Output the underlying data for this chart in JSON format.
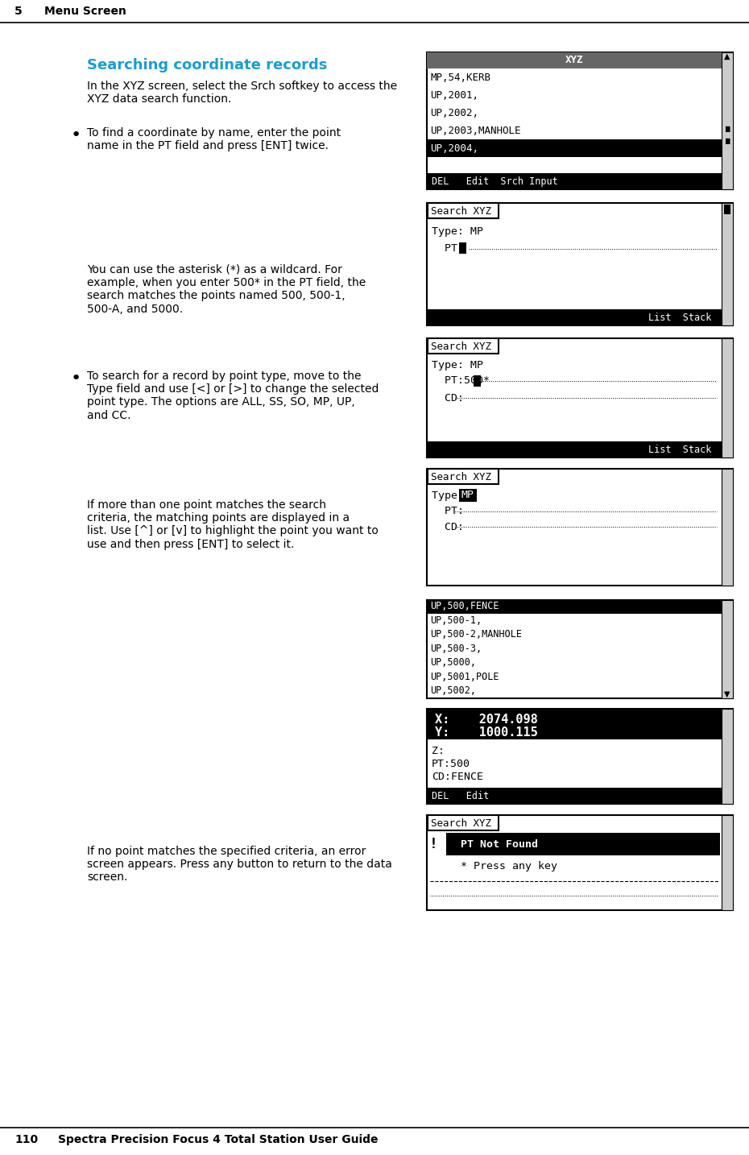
{
  "page_header_number": "5",
  "page_header_text": "Menu Screen",
  "page_footer_number": "110",
  "page_footer_text": "Spectra Precision Focus 4 Total Station User Guide",
  "section_title": "Searching coordinate records",
  "body_text_1": "In the XYZ screen, select the Sr ch softkey to access the\nXYZ data search function.",
  "bullet1_text": "To find a coordinate by name, enter the point\nname in the PT field and press [ENT] twice.",
  "wildcard_text": "You can use the asterisk (*) as a wildcard. For\nexample, when you enter 500* in the PT field, the\nsearch matches the points named 500, 500-1,\n500-A, and 5000.",
  "bullet2_text": "To search for a record by point type, move to the\nType field and use [<] or [>] to change the selected\npoint type. The options are ALL, SS, SO, MP, UP,\nand CC.",
  "list_text": "If more than one point matches the search\ncriteria, the matching points are displayed in a\nlist. Use [^] or [v] to highlight the point you want to\nuse and then press [ENT] to select it.",
  "error_text": "If no point matches the specified criteria, an error\nscreen appears. Press any button to return to the data\nscreen.",
  "bg_color": "#ffffff",
  "text_color": "#000000",
  "header_color": "#1a9ed4",
  "screen_bg": "#ffffff",
  "screen_border": "#000000",
  "screen_header_bg": "#333333",
  "screen_header_fg": "#ffffff",
  "screen_highlight_bg": "#000000",
  "screen_highlight_fg": "#ffffff",
  "screen_font_color": "#000000"
}
